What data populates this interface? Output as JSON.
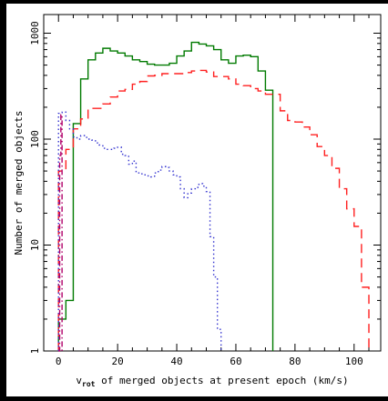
{
  "chart_data": {
    "type": "line",
    "xlabel_pre": "v",
    "xlabel_sub": "rot",
    "xlabel_post": " of merged objects at present epoch (km/s)",
    "ylabel": "Number of merged objects",
    "xlim": [
      -5,
      109
    ],
    "ylim": [
      1,
      1500
    ],
    "yscale": "log",
    "grid": false,
    "x_ticks": [
      "0",
      "20",
      "40",
      "60",
      "80",
      "100"
    ],
    "y_ticks": [
      "1",
      "10",
      "100",
      "1000"
    ],
    "series": [
      {
        "style": "solid",
        "color": "#007a00",
        "bin_edges": [
          0,
          2.5,
          5,
          7.5,
          10,
          12.5,
          15,
          17.5,
          20,
          22.5,
          25,
          27.5,
          30,
          32.5,
          35,
          37.5,
          40,
          42.5,
          45,
          47.5,
          50,
          52.5,
          55,
          57.5,
          60,
          62.5,
          65,
          67.5,
          70,
          72.5
        ],
        "values": [
          2,
          3,
          140,
          370,
          560,
          650,
          720,
          680,
          650,
          610,
          560,
          540,
          510,
          500,
          500,
          520,
          610,
          680,
          820,
          790,
          760,
          700,
          560,
          520,
          610,
          620,
          600,
          440,
          290
        ]
      },
      {
        "style": "dashed",
        "color": "#ff2020",
        "bin_edges": [
          0,
          2.5,
          5,
          7.5,
          10,
          12.5,
          15,
          17.5,
          20,
          22.5,
          25,
          27.5,
          30,
          32.5,
          35,
          37.5,
          40,
          42.5,
          45,
          47.5,
          50,
          52.5,
          55,
          57.5,
          60,
          62.5,
          65,
          67.5,
          70,
          72.5,
          75,
          77.5,
          80,
          82.5,
          85,
          87.5,
          90,
          92.5,
          95,
          97.5,
          100,
          102.5,
          105
        ],
        "values": [
          50,
          80,
          125,
          155,
          195,
          195,
          215,
          250,
          285,
          295,
          330,
          350,
          395,
          400,
          415,
          415,
          415,
          425,
          440,
          445,
          430,
          390,
          390,
          370,
          330,
          320,
          300,
          285,
          265,
          265,
          185,
          150,
          145,
          130,
          110,
          85,
          70,
          53,
          34,
          22,
          15,
          4
        ]
      },
      {
        "style": "dotted",
        "color": "#3535d0",
        "bin_edges": [
          0,
          1.25,
          2.5,
          3.75,
          5,
          6.25,
          7.5,
          8.75,
          10,
          11.25,
          12.5,
          13.75,
          15,
          16.25,
          17.5,
          18.75,
          20,
          21.25,
          22.5,
          23.75,
          25,
          26.25,
          27.5,
          28.75,
          30,
          31.25,
          32.5,
          33.75,
          35,
          36.25,
          37.5,
          38.75,
          40,
          41.25,
          42.5,
          43.75,
          45,
          46.25,
          47.5,
          48.75,
          50,
          51.25,
          52.5,
          53.75,
          55
        ],
        "values": [
          175,
          180,
          150,
          125,
          105,
          100,
          108,
          104,
          100,
          98,
          92,
          88,
          82,
          80,
          80,
          82,
          84,
          72,
          70,
          58,
          62,
          48,
          47,
          46,
          45,
          44,
          48,
          51,
          55,
          54,
          50,
          46,
          44,
          34,
          28,
          31,
          34,
          35,
          38,
          36,
          32,
          12,
          5,
          1.6
        ]
      },
      {
        "style": "dashdot",
        "color": "#b0006a",
        "bin_edges": [
          0,
          0.4,
          0.8,
          1.2
        ],
        "values": [
          1,
          70,
          170
        ]
      }
    ]
  }
}
